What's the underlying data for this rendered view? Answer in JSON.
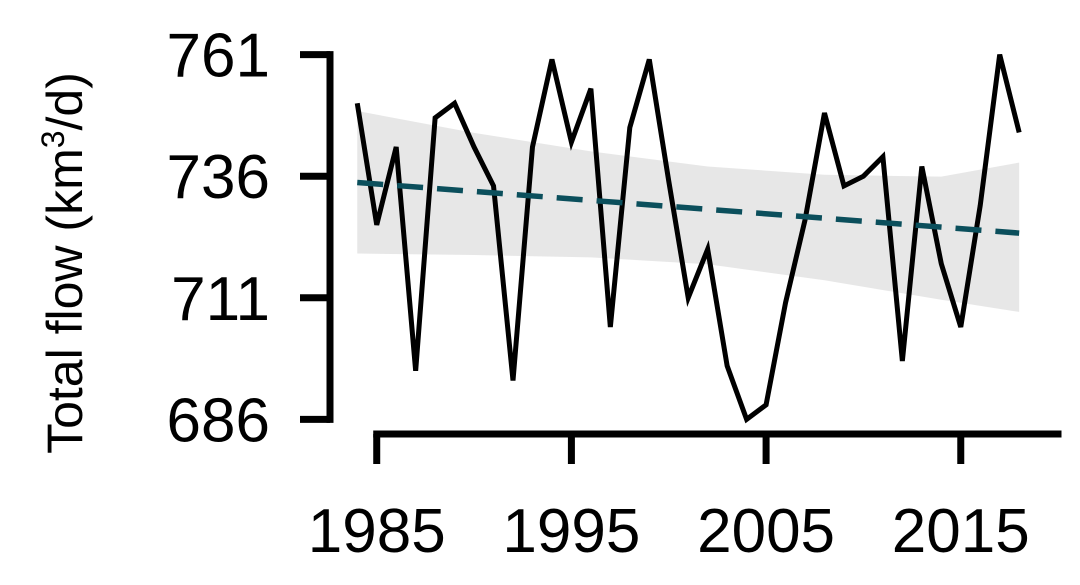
{
  "chart_data": {
    "type": "line",
    "title": "",
    "xlabel": "",
    "ylabel": "Total flow (km",
    "ylabel_superscript": "3",
    "ylabel_suffix": "/d)",
    "xlim": [
      1982.6,
      2020.2
    ],
    "ylim": [
      683.0,
      764.0
    ],
    "x_ticks": [
      1985,
      1995,
      2005,
      2015
    ],
    "x_tick_labels": [
      "1985",
      "1995",
      "2005",
      "2015"
    ],
    "y_ticks": [
      686,
      711,
      736,
      761
    ],
    "y_tick_labels": [
      "686",
      "711",
      "736",
      "761"
    ],
    "grid": false,
    "legend": "none",
    "series": [
      {
        "kind": "observed",
        "color": "#000000",
        "x": [
          1984,
          1985,
          1986,
          1987,
          1988,
          1989,
          1990,
          1991,
          1992,
          1993,
          1994,
          1995,
          1996,
          1997,
          1998,
          1999,
          2000,
          2001,
          2002,
          2003,
          2004,
          2005,
          2006,
          2007,
          2008,
          2009,
          2010,
          2011,
          2012,
          2013,
          2014,
          2015,
          2016,
          2017,
          2018
        ],
        "y": [
          751,
          726,
          742,
          696,
          748,
          751,
          742,
          734,
          694,
          742,
          760,
          743,
          754,
          705,
          746,
          760,
          735,
          711,
          721,
          697,
          686,
          689,
          710,
          727,
          749,
          734,
          736,
          740,
          698,
          738,
          718,
          705,
          730,
          761,
          745
        ]
      },
      {
        "kind": "trend",
        "color": "#0b4f5c",
        "dash": true,
        "x": [
          1984,
          2018
        ],
        "y": [
          734.7,
          724.3
        ]
      }
    ],
    "confidence_band": {
      "color": "#e3e3e3",
      "x": [
        1984,
        1990,
        1996,
        2002,
        2008,
        2014,
        2018
      ],
      "lower": [
        720.1,
        719.8,
        719.3,
        717.9,
        714.6,
        710.6,
        708.1
      ],
      "upper": [
        749.4,
        744.9,
        741.1,
        738.0,
        736.3,
        735.9,
        738.8
      ]
    }
  }
}
